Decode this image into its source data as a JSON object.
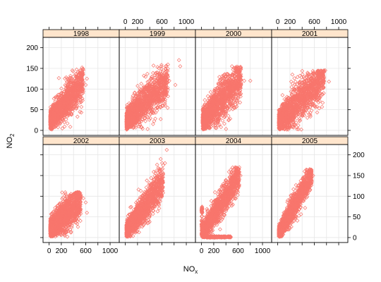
{
  "chart_data": {
    "type": "scatter",
    "layout": "lattice trellis, 4 columns x 2 rows, panels ordered left-to-right, bottom-row holds 2002-2005 and top-row holds 1998-2001",
    "xlabel": "NO",
    "xlabel_sub": "x",
    "ylabel": "NO",
    "ylabel_sub": "2",
    "xlim": [
      -100,
      1150
    ],
    "ylim": [
      -12,
      225
    ],
    "x_ticks": [
      0,
      200,
      600,
      1000
    ],
    "y_ticks": [
      0,
      50,
      100,
      150,
      200
    ],
    "x_tick_labels": [
      "0",
      "200",
      "600",
      "1000"
    ],
    "y_tick_labels": [
      "0",
      "50",
      "100",
      "150",
      "200"
    ],
    "grid": true,
    "marker": "open diamond",
    "series_color": "#f8766d",
    "panels": [
      {
        "year": "1998",
        "label": "1998",
        "x_range": [
          20,
          560
        ],
        "slope": 0.17,
        "intercept": 22,
        "spread": 22,
        "y_max": 150,
        "outliers": [
          [
            380,
            145
          ],
          [
            500,
            140
          ],
          [
            600,
            110
          ],
          [
            620,
            125
          ],
          [
            540,
            152
          ]
        ]
      },
      {
        "year": "1999",
        "label": "1999",
        "x_range": [
          20,
          700
        ],
        "slope": 0.14,
        "intercept": 22,
        "spread": 24,
        "y_max": 160,
        "outliers": [
          [
            880,
            170
          ],
          [
            900,
            155
          ],
          [
            720,
            120
          ],
          [
            820,
            110
          ],
          [
            660,
            135
          ]
        ]
      },
      {
        "year": "2000",
        "label": "2000",
        "x_range": [
          20,
          650
        ],
        "slope": 0.16,
        "intercept": 22,
        "spread": 24,
        "y_max": 155,
        "outliers": [
          [
            500,
            155
          ],
          [
            620,
            140
          ],
          [
            700,
            120
          ],
          [
            800,
            120
          ],
          [
            560,
            150
          ]
        ]
      },
      {
        "year": "2001",
        "label": "2001",
        "x_range": [
          20,
          760
        ],
        "slope": 0.14,
        "intercept": 20,
        "spread": 24,
        "y_max": 145,
        "outliers": [
          [
            780,
            145
          ],
          [
            720,
            140
          ],
          [
            840,
            118
          ],
          [
            660,
            135
          ],
          [
            240,
            135
          ]
        ]
      },
      {
        "year": "2002",
        "label": "2002",
        "x_range": [
          20,
          520
        ],
        "slope": 0.14,
        "intercept": 18,
        "spread": 22,
        "y_max": 110,
        "outliers": [
          [
            450,
            108
          ],
          [
            560,
            95
          ],
          [
            620,
            60
          ],
          [
            600,
            85
          ],
          [
            520,
            100
          ]
        ]
      },
      {
        "year": "2003",
        "label": "2003",
        "x_range": [
          20,
          620
        ],
        "slope": 0.2,
        "intercept": 12,
        "spread": 20,
        "y_max": 210,
        "outliers": [
          [
            680,
            212
          ],
          [
            620,
            175
          ],
          [
            580,
            190
          ],
          [
            650,
            180
          ],
          [
            540,
            168
          ]
        ]
      },
      {
        "year": "2004",
        "label": "2004",
        "x_range": [
          20,
          620
        ],
        "slope": 0.23,
        "intercept": 8,
        "spread": 18,
        "y_max": 170,
        "outliers": [
          [
            620,
            170
          ],
          [
            560,
            160
          ],
          [
            640,
            150
          ],
          [
            500,
            155
          ]
        ],
        "note": "dense cluster of points pinned near NO2 = 0 from NOx 0-480 and a vertical band at NOx near 0 up to about 75"
      },
      {
        "year": "2005",
        "label": "2005",
        "x_range": [
          20,
          560
        ],
        "slope": 0.26,
        "intercept": 6,
        "spread": 16,
        "y_max": 165,
        "outliers": [
          [
            520,
            165
          ],
          [
            440,
            160
          ],
          [
            580,
            150
          ],
          [
            500,
            155
          ]
        ]
      }
    ]
  }
}
